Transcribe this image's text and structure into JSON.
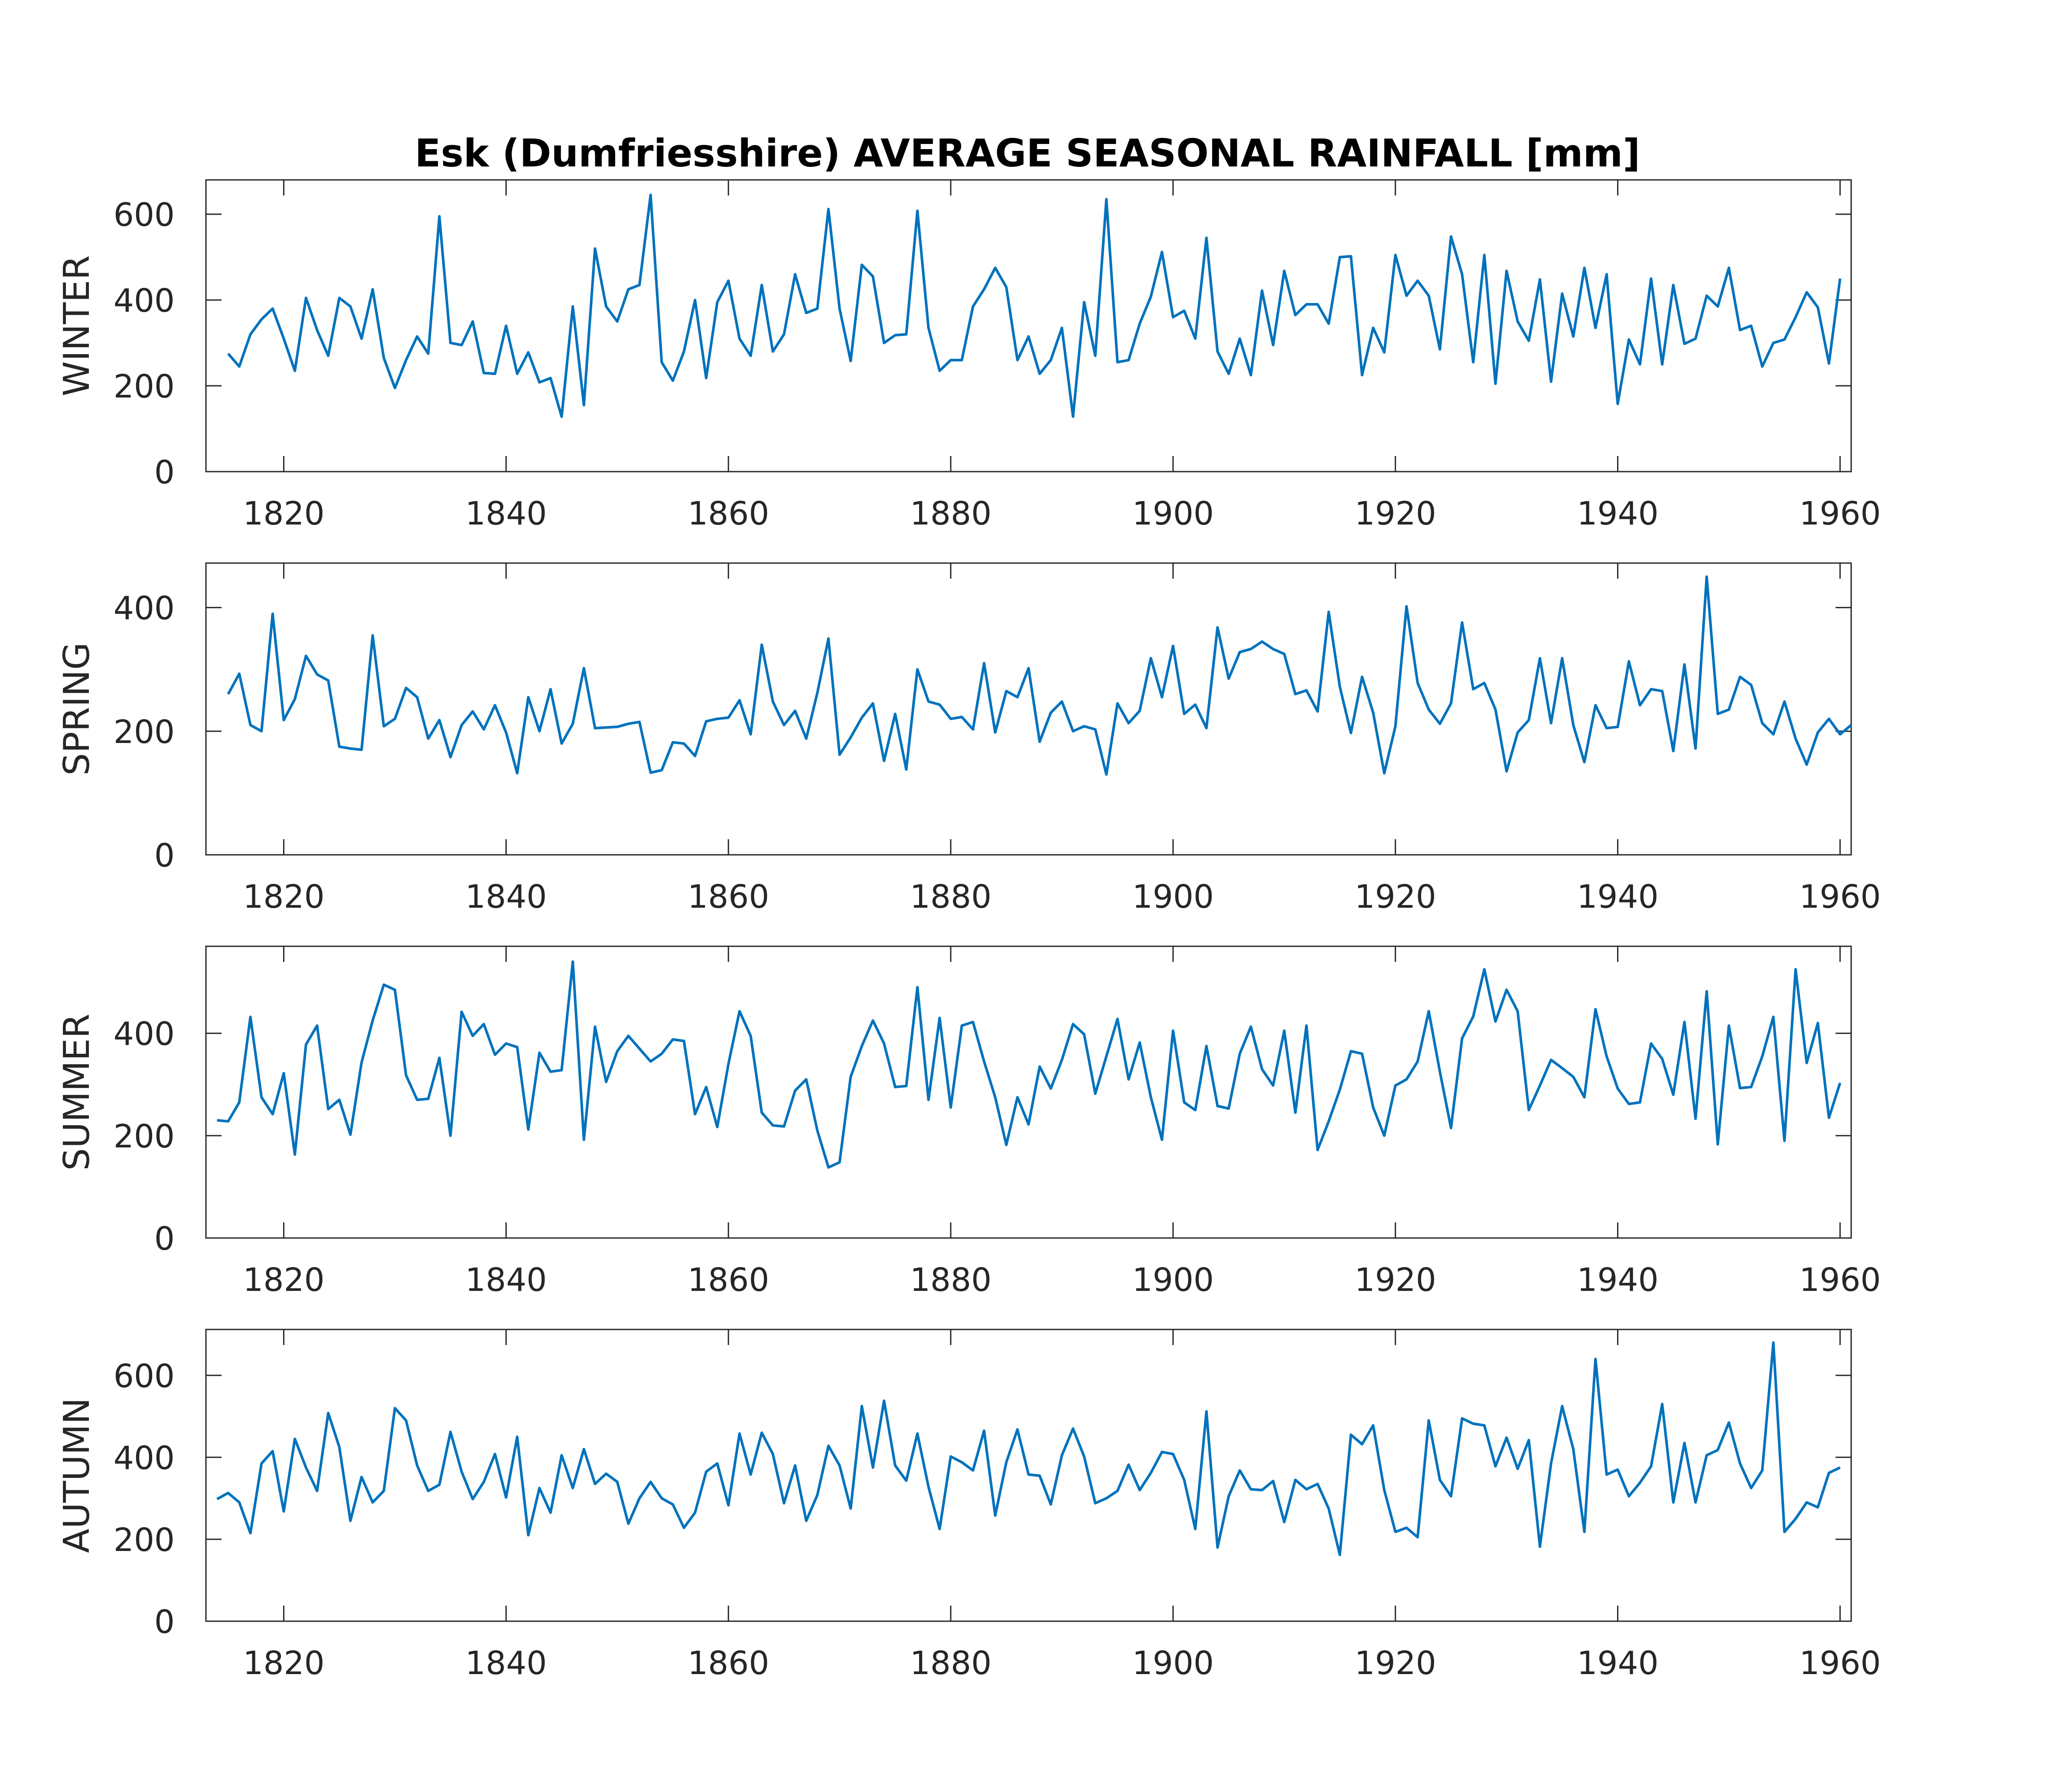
{
  "title": "Esk (Dumfriesshire) AVERAGE SEASONAL RAINFALL [mm]",
  "line_color": "#0072BD",
  "chart_data": [
    {
      "type": "line",
      "ylabel": "WINTER",
      "xlim": [
        1813,
        1961
      ],
      "ylim": [
        0,
        680
      ],
      "xticks": [
        1820,
        1840,
        1860,
        1880,
        1900,
        1920,
        1940,
        1960
      ],
      "yticks": [
        0,
        200,
        400,
        600
      ],
      "x_start": 1815,
      "series": [
        {
          "values": [
            275,
            245,
            320,
            355,
            380,
            310,
            235,
            405,
            330,
            270,
            405,
            385,
            310,
            425,
            265,
            195,
            260,
            315,
            275,
            595,
            300,
            295,
            350,
            230,
            228,
            340,
            228,
            278,
            208,
            218,
            128,
            385,
            155,
            520,
            385,
            350,
            425,
            435,
            645,
            255,
            212,
            280,
            400,
            218,
            395,
            445,
            310,
            270,
            435,
            280,
            320,
            460,
            370,
            380,
            612,
            380,
            258,
            482,
            455,
            300,
            318,
            320,
            608,
            335,
            235,
            260,
            260,
            385,
            425,
            475,
            430,
            260,
            315,
            228,
            260,
            335,
            128,
            395,
            270,
            635,
            255,
            260,
            345,
            408,
            512,
            360,
            375,
            310,
            545,
            280,
            228,
            310,
            225,
            422,
            295,
            468,
            365,
            390,
            390,
            345,
            500,
            502,
            225,
            335,
            278,
            505,
            410,
            445,
            410,
            285,
            548,
            460,
            255,
            505,
            205,
            468,
            350,
            305,
            448,
            210,
            415,
            315,
            475,
            335,
            460,
            158,
            308,
            250,
            450,
            250,
            435,
            298,
            310,
            410,
            385,
            475,
            330,
            340,
            245,
            300,
            308,
            360,
            418,
            383,
            252,
            450
          ]
        }
      ]
    },
    {
      "type": "line",
      "ylabel": "SPRING",
      "xlim": [
        1813,
        1961
      ],
      "ylim": [
        0,
        472
      ],
      "xticks": [
        1820,
        1840,
        1860,
        1880,
        1900,
        1920,
        1940,
        1960
      ],
      "yticks": [
        0,
        200,
        400
      ],
      "x_start": 1815,
      "series": [
        {
          "values": [
            260,
            293,
            210,
            200,
            390,
            218,
            252,
            322,
            292,
            282,
            175,
            172,
            170,
            355,
            208,
            220,
            270,
            255,
            188,
            218,
            158,
            210,
            232,
            203,
            242,
            198,
            132,
            255,
            200,
            268,
            180,
            212,
            302,
            205,
            206,
            207,
            212,
            215,
            133,
            137,
            182,
            180,
            160,
            216,
            220,
            222,
            250,
            195,
            340,
            248,
            210,
            233,
            188,
            262,
            350,
            162,
            190,
            222,
            245,
            152,
            228,
            138,
            300,
            248,
            243,
            220,
            223,
            203,
            310,
            198,
            265,
            255,
            302,
            183,
            230,
            248,
            200,
            208,
            203,
            130,
            245,
            213,
            233,
            318,
            255,
            338,
            228,
            243,
            205,
            368,
            285,
            328,
            333,
            345,
            333,
            325,
            260,
            266,
            232,
            393,
            272,
            197,
            288,
            230,
            132,
            208,
            402,
            278,
            235,
            212,
            245,
            376,
            268,
            278,
            235,
            135,
            198,
            218,
            318,
            213,
            318,
            210,
            150,
            242,
            205,
            207,
            313,
            242,
            268,
            265,
            168,
            308,
            172,
            450,
            228,
            235,
            288,
            275,
            213,
            195,
            248,
            188,
            146,
            198,
            220,
            195,
            210
          ]
        }
      ]
    },
    {
      "type": "line",
      "ylabel": "SUMMER",
      "xlim": [
        1813,
        1961
      ],
      "ylim": [
        0,
        570
      ],
      "xticks": [
        1820,
        1840,
        1860,
        1880,
        1900,
        1920,
        1940,
        1960
      ],
      "yticks": [
        0,
        200,
        400
      ],
      "x_start": 1814,
      "series": [
        {
          "values": [
            230,
            228,
            265,
            432,
            275,
            242,
            322,
            163,
            378,
            415,
            252,
            270,
            202,
            343,
            425,
            495,
            485,
            318,
            270,
            272,
            352,
            200,
            442,
            395,
            418,
            358,
            380,
            373,
            212,
            362,
            325,
            328,
            540,
            192,
            413,
            305,
            365,
            395,
            370,
            345,
            360,
            388,
            385,
            242,
            295,
            217,
            340,
            443,
            395,
            245,
            220,
            218,
            288,
            310,
            210,
            138,
            148,
            315,
            375,
            425,
            380,
            295,
            297,
            490,
            270,
            430,
            255,
            415,
            422,
            345,
            275,
            182,
            275,
            222,
            335,
            292,
            348,
            418,
            398,
            282,
            355,
            428,
            310,
            382,
            275,
            192,
            405,
            265,
            250,
            375,
            258,
            253,
            360,
            413,
            330,
            298,
            405,
            245,
            415,
            172,
            228,
            290,
            365,
            360,
            255,
            200,
            298,
            310,
            345,
            443,
            325,
            215,
            390,
            433,
            525,
            423,
            485,
            443,
            250,
            298,
            348,
            332,
            315,
            275,
            447,
            355,
            292,
            262,
            265,
            380,
            350,
            280,
            422,
            233,
            482,
            183,
            415,
            293,
            295,
            355,
            432,
            190,
            525,
            342,
            420,
            235,
            303
          ]
        }
      ]
    },
    {
      "type": "line",
      "ylabel": "AUTUMN",
      "xlim": [
        1813,
        1961
      ],
      "ylim": [
        0,
        712
      ],
      "xticks": [
        1820,
        1840,
        1860,
        1880,
        1900,
        1920,
        1940,
        1960
      ],
      "yticks": [
        0,
        200,
        400,
        600
      ],
      "x_start": 1814,
      "series": [
        {
          "values": [
            298,
            313,
            290,
            215,
            385,
            415,
            268,
            445,
            375,
            318,
            508,
            425,
            245,
            352,
            290,
            318,
            520,
            490,
            380,
            318,
            333,
            462,
            365,
            298,
            340,
            408,
            302,
            450,
            210,
            325,
            265,
            405,
            325,
            420,
            335,
            360,
            340,
            238,
            300,
            340,
            300,
            285,
            228,
            265,
            365,
            385,
            283,
            458,
            358,
            460,
            408,
            288,
            380,
            245,
            308,
            428,
            380,
            275,
            525,
            375,
            538,
            380,
            343,
            458,
            328,
            225,
            402,
            388,
            368,
            465,
            258,
            388,
            468,
            358,
            355,
            285,
            405,
            470,
            402,
            288,
            300,
            318,
            382,
            320,
            362,
            413,
            408,
            345,
            225,
            512,
            180,
            305,
            368,
            322,
            320,
            342,
            242,
            345,
            322,
            335,
            275,
            162,
            455,
            432,
            478,
            320,
            218,
            228,
            205,
            490,
            345,
            305,
            495,
            482,
            478,
            378,
            448,
            372,
            442,
            182,
            385,
            525,
            420,
            218,
            640,
            358,
            370,
            305,
            338,
            378,
            530,
            290,
            435,
            290,
            405,
            418,
            485,
            385,
            325,
            368,
            680,
            218,
            250,
            290,
            278,
            362,
            375
          ]
        }
      ]
    }
  ]
}
